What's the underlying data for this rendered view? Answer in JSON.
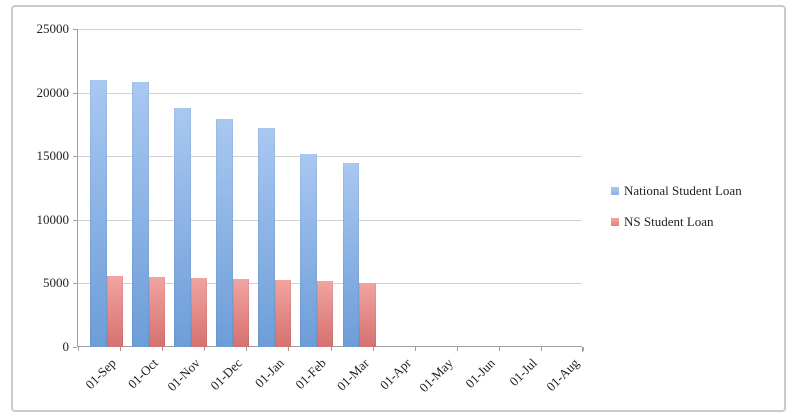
{
  "chart_data": {
    "type": "bar",
    "title": "",
    "xlabel": "",
    "ylabel": "",
    "categories": [
      "01-Sep",
      "01-Oct",
      "01-Nov",
      "01-Dec",
      "01-Jan",
      "01-Feb",
      "01-Mar",
      "01-Apr",
      "01-May",
      "01-Jun",
      "01-Jul",
      "01-Aug"
    ],
    "series": [
      {
        "name": "National Student Loan",
        "values": [
          21000,
          20800,
          18800,
          17900,
          17200,
          15200,
          14500,
          null,
          null,
          null,
          null,
          null
        ],
        "color_top": "#a9c8f1",
        "color_bottom": "#6d9dd8",
        "legend_color": "#8db3e2"
      },
      {
        "name": "NS Student Loan",
        "values": [
          5550,
          5500,
          5400,
          5350,
          5250,
          5200,
          5050,
          null,
          null,
          null,
          null,
          null
        ],
        "color_top": "#f2a4a0",
        "color_bottom": "#d57170",
        "legend_color": "#e0837f"
      }
    ],
    "ylim": [
      0,
      25000
    ],
    "yticks": [
      0,
      5000,
      10000,
      15000,
      20000,
      25000
    ],
    "grid": true,
    "legend_position": "right",
    "gridline_color": "#d2d2d2",
    "axis_color": "#9f9f9f",
    "text_color": "#1f1f1f"
  }
}
